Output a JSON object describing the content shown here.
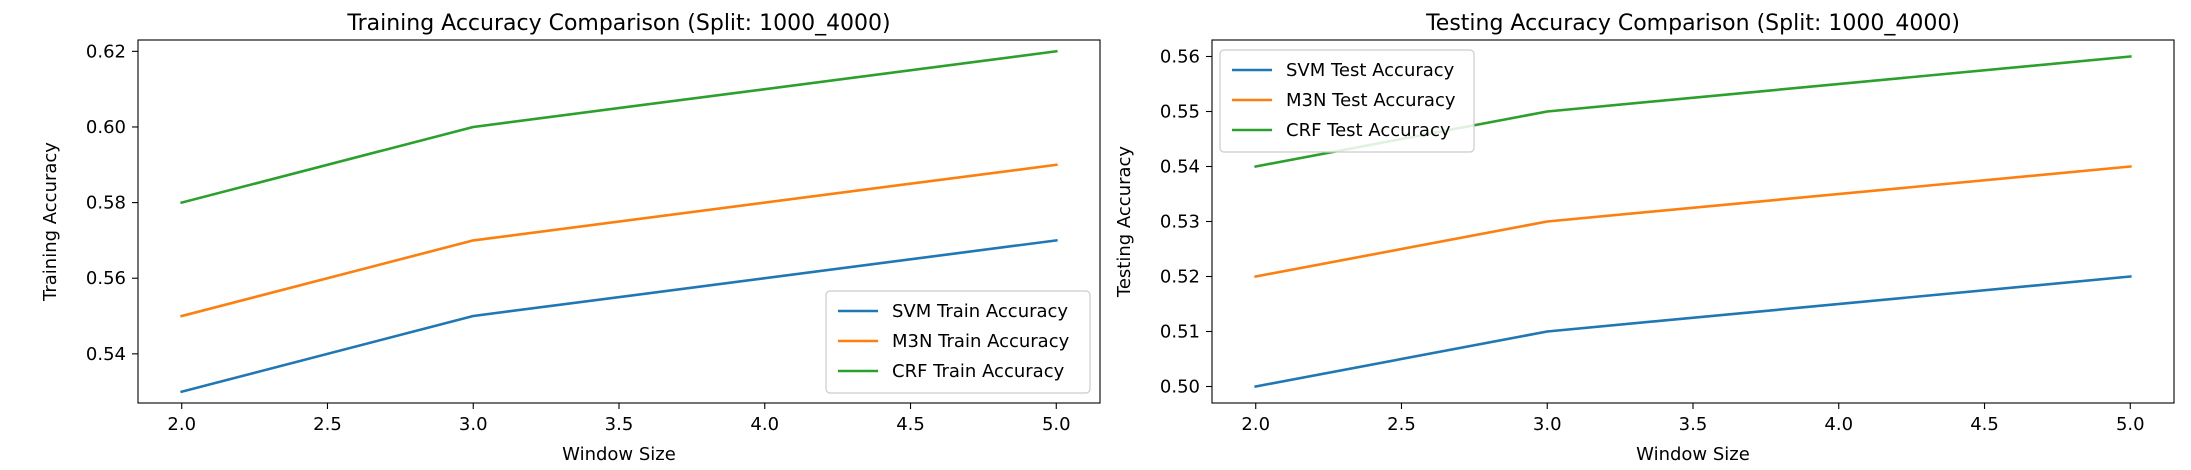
{
  "chart_data": [
    {
      "type": "line",
      "title": "Training Accuracy Comparison (Split: 1000_4000)",
      "xlabel": "Window Size",
      "ylabel": "Training Accuracy",
      "x": [
        2.0,
        3.0,
        5.0
      ],
      "xlim": [
        1.85,
        5.15
      ],
      "ylim": [
        0.527,
        0.623
      ],
      "xticks": [
        2.0,
        2.5,
        3.0,
        3.5,
        4.0,
        4.5,
        5.0
      ],
      "xtick_labels": [
        "2.0",
        "2.5",
        "3.0",
        "3.5",
        "4.0",
        "4.5",
        "5.0"
      ],
      "yticks": [
        0.54,
        0.56,
        0.58,
        0.6,
        0.62
      ],
      "ytick_labels": [
        "0.54",
        "0.56",
        "0.58",
        "0.60",
        "0.62"
      ],
      "grid": false,
      "legend_position": "lower-right",
      "series": [
        {
          "name": "SVM Train Accuracy",
          "color": "#1f77b4",
          "values": [
            0.53,
            0.55,
            0.57
          ]
        },
        {
          "name": "M3N Train Accuracy",
          "color": "#ff7f0e",
          "values": [
            0.55,
            0.57,
            0.59
          ]
        },
        {
          "name": "CRF Train Accuracy",
          "color": "#2ca02c",
          "values": [
            0.58,
            0.6,
            0.62
          ]
        }
      ]
    },
    {
      "type": "line",
      "title": "Testing Accuracy Comparison (Split: 1000_4000)",
      "xlabel": "Window Size",
      "ylabel": "Testing Accuracy",
      "x": [
        2.0,
        3.0,
        5.0
      ],
      "xlim": [
        1.85,
        5.15
      ],
      "ylim": [
        0.497,
        0.563
      ],
      "xticks": [
        2.0,
        2.5,
        3.0,
        3.5,
        4.0,
        4.5,
        5.0
      ],
      "xtick_labels": [
        "2.0",
        "2.5",
        "3.0",
        "3.5",
        "4.0",
        "4.5",
        "5.0"
      ],
      "yticks": [
        0.5,
        0.51,
        0.52,
        0.53,
        0.54,
        0.55,
        0.56
      ],
      "ytick_labels": [
        "0.50",
        "0.51",
        "0.52",
        "0.53",
        "0.54",
        "0.55",
        "0.56"
      ],
      "grid": false,
      "legend_position": "upper-left",
      "series": [
        {
          "name": "SVM Test Accuracy",
          "color": "#1f77b4",
          "values": [
            0.5,
            0.51,
            0.52
          ]
        },
        {
          "name": "M3N Test Accuracy",
          "color": "#ff7f0e",
          "values": [
            0.52,
            0.53,
            0.54
          ]
        },
        {
          "name": "CRF Test Accuracy",
          "color": "#2ca02c",
          "values": [
            0.54,
            0.55,
            0.56
          ]
        }
      ]
    }
  ]
}
